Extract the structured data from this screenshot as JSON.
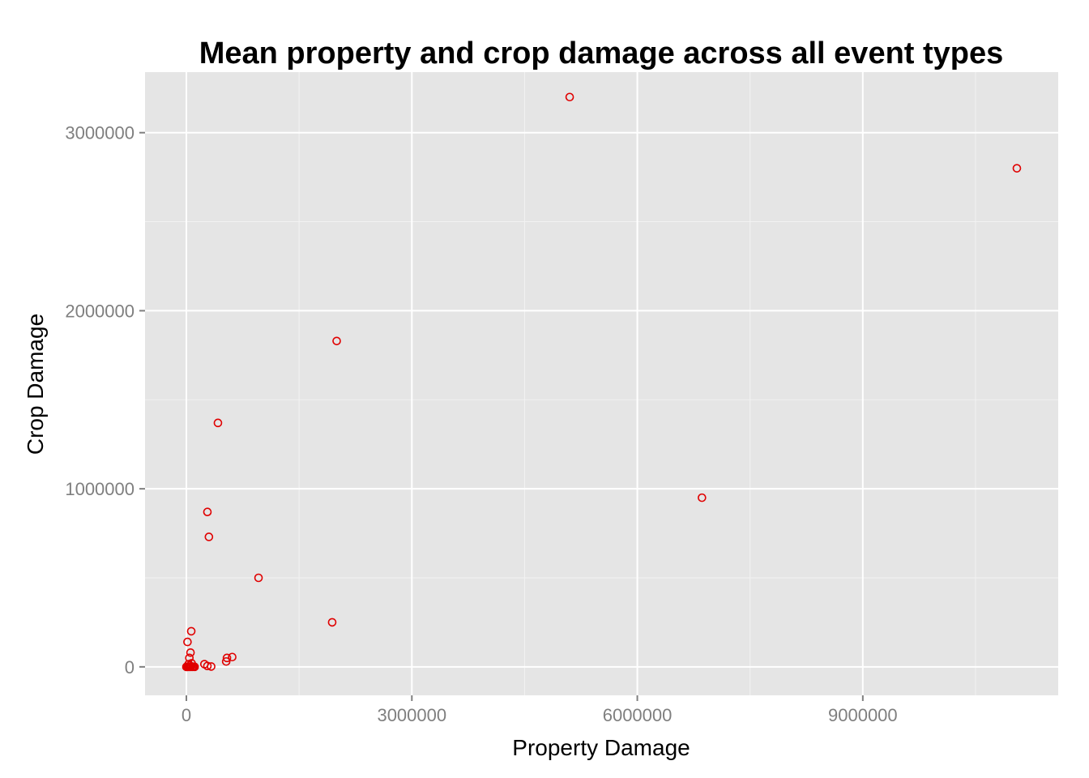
{
  "chart_data": {
    "type": "scatter",
    "title": "Mean property and crop damage across all event types",
    "xlabel": "Property Damage",
    "ylabel": "Crop Damage",
    "xlim": [
      -550000,
      11600000
    ],
    "ylim": [
      -160000,
      3340000
    ],
    "x_ticks": [
      0,
      3000000,
      6000000,
      9000000
    ],
    "x_tick_labels": [
      "0",
      "3000000",
      "6000000",
      "9000000"
    ],
    "y_ticks": [
      0,
      1000000,
      2000000,
      3000000
    ],
    "y_tick_labels": [
      "0",
      "1000000",
      "2000000",
      "3000000"
    ],
    "grid": true,
    "colors": {
      "panel": "#e5e5e5",
      "grid": "#ffffff",
      "point": "#e00000"
    },
    "points": [
      {
        "x": 5100000,
        "y": 3200000
      },
      {
        "x": 11050000,
        "y": 2800000
      },
      {
        "x": 2000000,
        "y": 1830000
      },
      {
        "x": 420000,
        "y": 1370000
      },
      {
        "x": 6860000,
        "y": 950000
      },
      {
        "x": 280000,
        "y": 870000
      },
      {
        "x": 300000,
        "y": 730000
      },
      {
        "x": 960000,
        "y": 500000
      },
      {
        "x": 1940000,
        "y": 250000
      },
      {
        "x": 65000,
        "y": 200000
      },
      {
        "x": 15000,
        "y": 140000
      },
      {
        "x": 55000,
        "y": 80000
      },
      {
        "x": 610000,
        "y": 55000
      },
      {
        "x": 540000,
        "y": 50000
      },
      {
        "x": 40000,
        "y": 50000
      },
      {
        "x": 530000,
        "y": 30000
      },
      {
        "x": 240000,
        "y": 15000
      },
      {
        "x": 280000,
        "y": 5000
      },
      {
        "x": 330000,
        "y": 2000
      },
      {
        "x": 0,
        "y": 0
      },
      {
        "x": 5000,
        "y": 0
      },
      {
        "x": 15000,
        "y": 0
      },
      {
        "x": 25000,
        "y": 2000
      },
      {
        "x": 35000,
        "y": 0
      },
      {
        "x": 45000,
        "y": 1000
      },
      {
        "x": 55000,
        "y": 0
      },
      {
        "x": 65000,
        "y": 3000
      },
      {
        "x": 80000,
        "y": 0
      },
      {
        "x": 95000,
        "y": 1000
      },
      {
        "x": 110000,
        "y": 0
      },
      {
        "x": 30000,
        "y": 15000
      },
      {
        "x": 70000,
        "y": 20000
      }
    ]
  }
}
